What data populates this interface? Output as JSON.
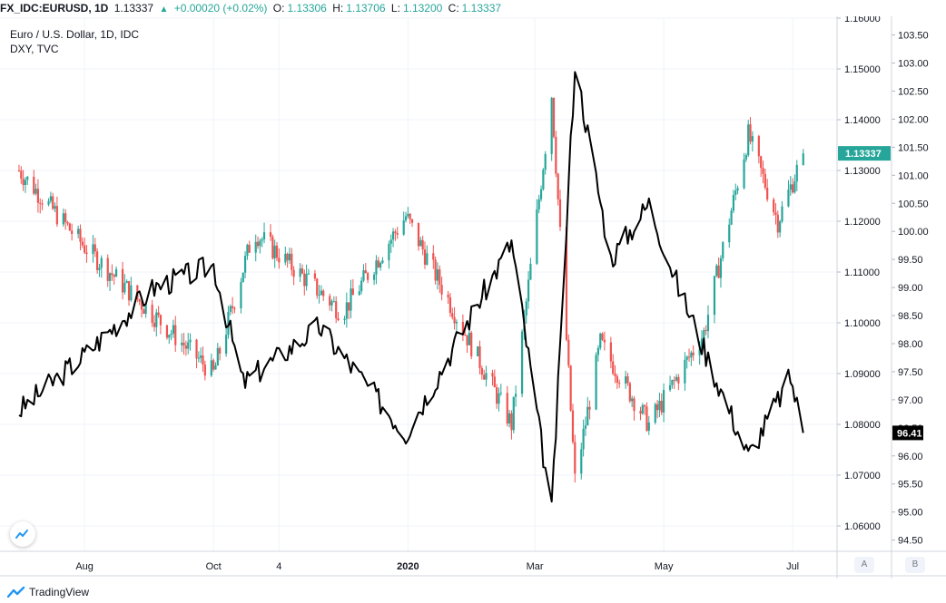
{
  "header": {
    "symbol": "FX_IDC:EURUSD, 1D",
    "last": "1.13337",
    "change": "+0.00020 (+0.02%)",
    "o_label": "O:",
    "o_value": "1.13306",
    "h_label": "H:",
    "h_value": "1.13706",
    "l_label": "L:",
    "l_value": "1.13200",
    "c_label": "C:",
    "c_value": "1.13337"
  },
  "legend": {
    "main": "Euro / U.S. Dollar, 1D, IDC",
    "compare": "DXY, TVC"
  },
  "price_badges": {
    "eurusd": "1.13337",
    "dxy": "96.41"
  },
  "axis_buttons": {
    "a": "A",
    "b": "B"
  },
  "brand": {
    "name": "TradingView"
  },
  "colors": {
    "up": "#26a69a",
    "down": "#ef5350",
    "dxy_line": "#000000",
    "grid": "#f0f3fa"
  },
  "chart_data": [
    {
      "type": "candlestick",
      "name": "FX_IDC:EURUSD",
      "y_axis": "left price scale",
      "ylim": [
        1.055,
        1.16
      ],
      "y_ticks": [
        "1.16000",
        "1.15000",
        "1.14000",
        "1.13000",
        "1.12000",
        "1.11000",
        "1.10000",
        "1.09000",
        "1.08000",
        "1.07000",
        "1.06000"
      ],
      "x_ticks": [
        "Aug",
        "Oct",
        "4",
        "2020",
        "Mar",
        "May",
        "Jul"
      ],
      "key_points": [
        {
          "date": "2019-07-01",
          "close": 1.13
        },
        {
          "date": "2019-08-01",
          "close": 1.115
        },
        {
          "date": "2019-08-30",
          "close": 1.103
        },
        {
          "date": "2019-10-01",
          "close": 1.09
        },
        {
          "date": "2019-10-20",
          "close": 1.118
        },
        {
          "date": "2019-12-01",
          "close": 1.102
        },
        {
          "date": "2019-12-31",
          "close": 1.121
        },
        {
          "date": "2020-02-19",
          "close": 1.08
        },
        {
          "date": "2020-03-09",
          "close": 1.145
        },
        {
          "date": "2020-03-20",
          "close": 1.069
        },
        {
          "date": "2020-04-01",
          "close": 1.096
        },
        {
          "date": "2020-04-24",
          "close": 1.08
        },
        {
          "date": "2020-05-20",
          "close": 1.098
        },
        {
          "date": "2020-06-10",
          "close": 1.137
        },
        {
          "date": "2020-06-24",
          "close": 1.12
        },
        {
          "date": "2020-07-06",
          "close": 1.13337
        }
      ],
      "last": 1.13337
    },
    {
      "type": "line",
      "name": "DXY",
      "y_axis": "right scale",
      "ylim": [
        94.3,
        103.8
      ],
      "y_ticks": [
        "103.50",
        "103.00",
        "102.50",
        "102.00",
        "101.50",
        "101.00",
        "100.50",
        "100.00",
        "99.50",
        "99.00",
        "98.50",
        "98.00",
        "97.50",
        "97.00",
        "96.50",
        "96.00",
        "95.50",
        "95.00",
        "94.50"
      ],
      "key_points": [
        {
          "date": "2019-07-01",
          "value": 96.8
        },
        {
          "date": "2019-08-01",
          "value": 97.8
        },
        {
          "date": "2019-09-03",
          "value": 99.0
        },
        {
          "date": "2019-10-01",
          "value": 99.4
        },
        {
          "date": "2019-10-15",
          "value": 97.3
        },
        {
          "date": "2019-11-20",
          "value": 98.3
        },
        {
          "date": "2019-12-31",
          "value": 96.4
        },
        {
          "date": "2020-02-19",
          "value": 99.8
        },
        {
          "date": "2020-03-09",
          "value": 95.0
        },
        {
          "date": "2020-03-20",
          "value": 103.0
        },
        {
          "date": "2020-04-06",
          "value": 99.5
        },
        {
          "date": "2020-04-24",
          "value": 100.5
        },
        {
          "date": "2020-05-08",
          "value": 99.0
        },
        {
          "date": "2020-06-10",
          "value": 96.0
        },
        {
          "date": "2020-06-30",
          "value": 97.4
        },
        {
          "date": "2020-07-06",
          "value": 96.41
        }
      ],
      "last": 96.41
    }
  ]
}
